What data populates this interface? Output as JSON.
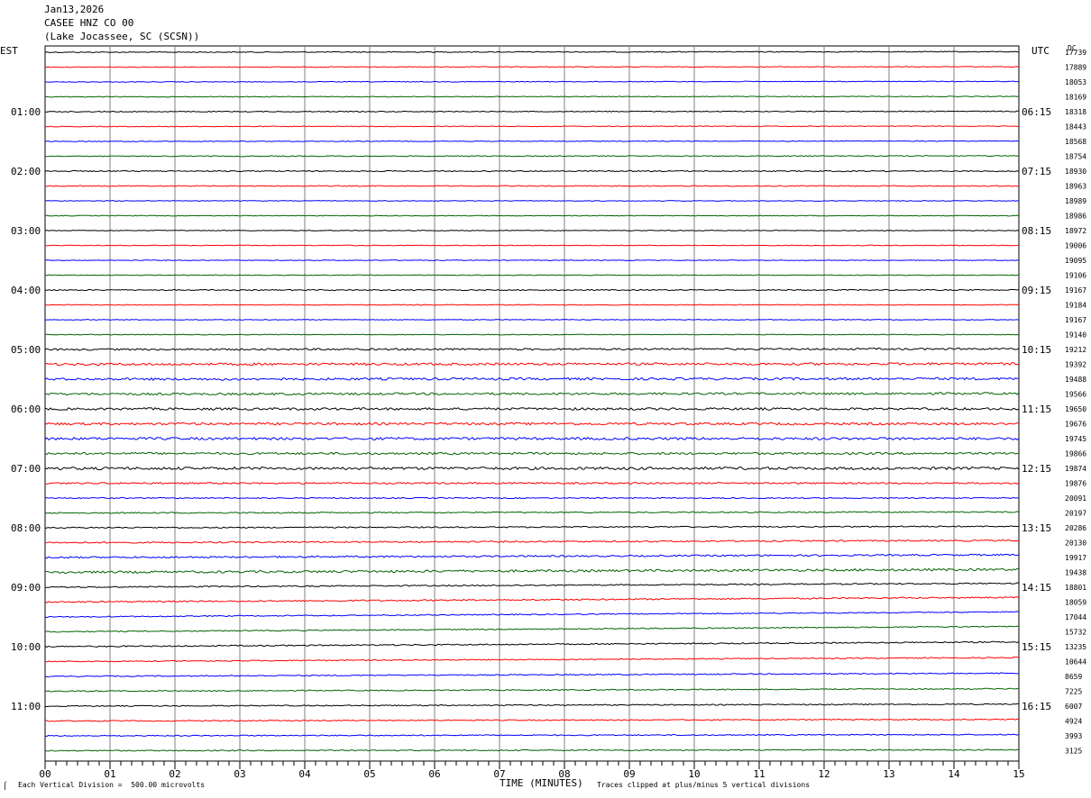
{
  "header": {
    "date": "Jan13,2026",
    "station": "CASEE HNZ CO 00",
    "location": "(Lake Jocassee, SC (SCSN))"
  },
  "left_axis_label": "EST",
  "right_axis_label": "UTC",
  "dc_label": "DC",
  "footer": {
    "scale_note": "Each Vertical Division =  500.00 microvolts",
    "xlabel": "TIME (MINUTES)",
    "clip_note": "Traces clipped at plus/minus 5 vertical divisions"
  },
  "colors": {
    "trace_cycle": [
      "#000000",
      "#ff0000",
      "#0000ff",
      "#006400"
    ],
    "grid": "#808080"
  },
  "chart_data": {
    "type": "line",
    "title": "CASEE HNZ CO 00",
    "xlabel": "TIME (MINUTES)",
    "xlim": [
      0,
      15
    ],
    "x_ticks": [
      "00",
      "01",
      "02",
      "03",
      "04",
      "05",
      "06",
      "07",
      "08",
      "09",
      "10",
      "11",
      "12",
      "13",
      "14",
      "15"
    ],
    "left_hour_labels": [
      "01:00",
      "02:00",
      "03:00",
      "04:00",
      "05:00",
      "06:00",
      "07:00",
      "08:00",
      "09:00",
      "10:00",
      "11:00"
    ],
    "right_hour_labels": [
      "06:15",
      "07:15",
      "08:15",
      "09:15",
      "10:15",
      "11:15",
      "12:15",
      "13:15",
      "14:15",
      "15:15",
      "16:15"
    ],
    "dc_offsets": [
      17739,
      17889,
      18053,
      18169,
      18318,
      18443,
      18568,
      18754,
      18930,
      18963,
      18989,
      18986,
      18972,
      19006,
      19095,
      19106,
      19167,
      19184,
      19167,
      19140,
      19212,
      19392,
      19488,
      19566,
      19650,
      19676,
      19745,
      19866,
      19874,
      19876,
      20091,
      20197,
      20286,
      20130,
      19917,
      19438,
      18801,
      18059,
      17044,
      15732,
      13235,
      10644,
      8659,
      7225,
      6007,
      4924,
      3993,
      3125
    ],
    "trace_noise_level": [
      0.5,
      0.4,
      0.4,
      0.4,
      0.5,
      0.4,
      0.4,
      0.5,
      0.6,
      0.5,
      0.4,
      0.4,
      0.4,
      0.4,
      0.4,
      0.4,
      0.6,
      0.4,
      0.4,
      0.4,
      1.0,
      1.3,
      1.3,
      1.2,
      1.3,
      1.3,
      1.4,
      1.2,
      1.5,
      0.9,
      0.6,
      0.7,
      0.7,
      0.8,
      0.9,
      1.3,
      0.7,
      0.8,
      0.6,
      0.6,
      0.7,
      0.6,
      0.6,
      0.6,
      0.6,
      0.6,
      0.6,
      0.6
    ],
    "trace_drift": [
      -0.3,
      -0.2,
      -0.3,
      -0.2,
      -0.2,
      -0.2,
      -0.2,
      -0.2,
      0,
      0,
      0,
      0,
      0,
      0,
      0,
      0,
      0,
      0,
      0,
      0,
      -0.3,
      -0.3,
      -0.3,
      -0.3,
      0,
      0,
      0,
      0,
      0,
      0,
      0,
      -0.5,
      -0.8,
      -1.2,
      -1.5,
      -1.6,
      -2.2,
      -2.6,
      -2.8,
      -3.0,
      -2.6,
      -2.2,
      -1.8,
      -1.4,
      -1.1,
      -0.9,
      -0.7,
      -0.5
    ]
  }
}
